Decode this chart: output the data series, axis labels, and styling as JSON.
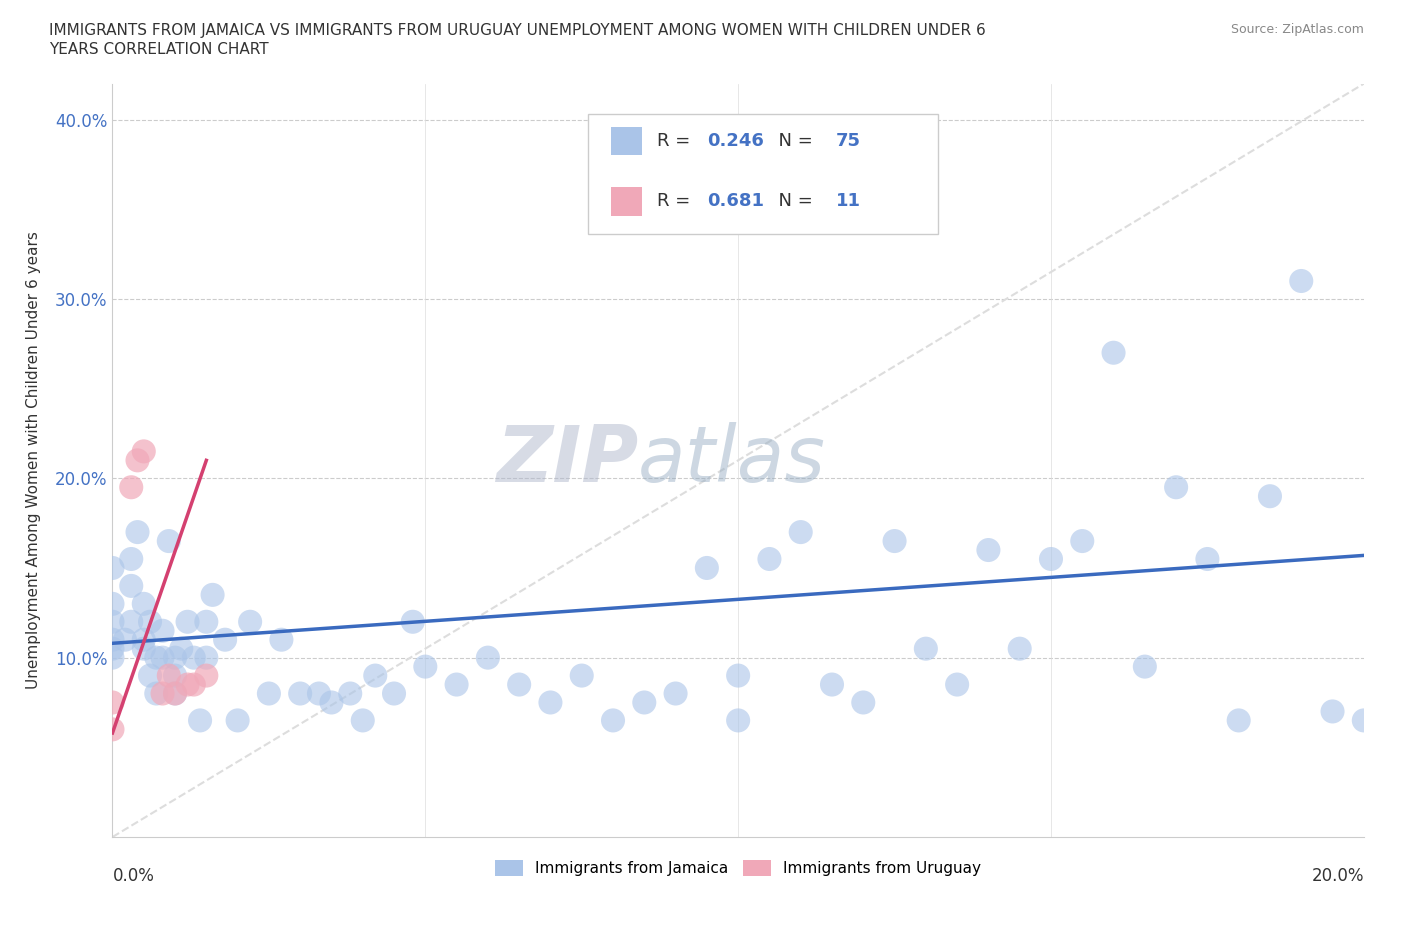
{
  "title_line1": "IMMIGRANTS FROM JAMAICA VS IMMIGRANTS FROM URUGUAY UNEMPLOYMENT AMONG WOMEN WITH CHILDREN UNDER 6",
  "title_line2": "YEARS CORRELATION CHART",
  "source": "Source: ZipAtlas.com",
  "ylabel": "Unemployment Among Women with Children Under 6 years",
  "x_min": 0.0,
  "x_max": 0.2,
  "y_min": 0.0,
  "y_max": 0.42,
  "yticks": [
    0.1,
    0.2,
    0.3,
    0.4
  ],
  "ytick_labels": [
    "10.0%",
    "20.0%",
    "30.0%",
    "40.0%"
  ],
  "jamaica_color": "#aac4e8",
  "uruguay_color": "#f0a8b8",
  "jamaica_line_color": "#3a6abf",
  "uruguay_line_color": "#d44070",
  "legend_jamaica_label": "Immigrants from Jamaica",
  "legend_uruguay_label": "Immigrants from Uruguay",
  "R_jamaica": 0.246,
  "N_jamaica": 75,
  "R_uruguay": 0.681,
  "N_uruguay": 11,
  "watermark_zip": "ZIP",
  "watermark_atlas": "atlas",
  "jamaica_x": [
    0.0,
    0.0,
    0.0,
    0.0,
    0.0,
    0.0,
    0.002,
    0.003,
    0.003,
    0.003,
    0.004,
    0.005,
    0.005,
    0.005,
    0.006,
    0.006,
    0.007,
    0.007,
    0.008,
    0.008,
    0.009,
    0.01,
    0.01,
    0.01,
    0.011,
    0.012,
    0.013,
    0.014,
    0.015,
    0.015,
    0.016,
    0.018,
    0.02,
    0.022,
    0.025,
    0.027,
    0.03,
    0.033,
    0.035,
    0.038,
    0.04,
    0.042,
    0.045,
    0.048,
    0.05,
    0.055,
    0.06,
    0.065,
    0.07,
    0.075,
    0.08,
    0.085,
    0.09,
    0.095,
    0.1,
    0.1,
    0.105,
    0.11,
    0.115,
    0.12,
    0.125,
    0.13,
    0.135,
    0.14,
    0.145,
    0.15,
    0.155,
    0.16,
    0.165,
    0.17,
    0.175,
    0.18,
    0.185,
    0.19,
    0.195
  ],
  "jamaica_y": [
    0.1,
    0.105,
    0.11,
    0.12,
    0.13,
    0.15,
    0.11,
    0.12,
    0.14,
    0.155,
    0.17,
    0.105,
    0.11,
    0.13,
    0.09,
    0.12,
    0.08,
    0.1,
    0.1,
    0.115,
    0.165,
    0.08,
    0.09,
    0.1,
    0.105,
    0.12,
    0.1,
    0.065,
    0.1,
    0.12,
    0.135,
    0.11,
    0.065,
    0.12,
    0.08,
    0.11,
    0.08,
    0.08,
    0.075,
    0.08,
    0.065,
    0.09,
    0.08,
    0.12,
    0.095,
    0.085,
    0.1,
    0.085,
    0.075,
    0.09,
    0.065,
    0.075,
    0.08,
    0.15,
    0.065,
    0.09,
    0.155,
    0.17,
    0.085,
    0.075,
    0.165,
    0.105,
    0.085,
    0.16,
    0.105,
    0.155,
    0.165,
    0.27,
    0.095,
    0.195,
    0.155,
    0.065,
    0.19,
    0.31,
    0.07
  ],
  "jamaica_extra_x": [
    0.2
  ],
  "jamaica_extra_y": [
    0.065
  ],
  "uruguay_x": [
    0.0,
    0.0,
    0.003,
    0.004,
    0.005,
    0.008,
    0.009,
    0.01,
    0.012,
    0.013,
    0.015
  ],
  "uruguay_y": [
    0.06,
    0.075,
    0.195,
    0.21,
    0.215,
    0.08,
    0.09,
    0.08,
    0.085,
    0.085,
    0.09
  ],
  "jamaica_trend_x": [
    0.0,
    0.2
  ],
  "jamaica_trend_y": [
    0.108,
    0.157
  ],
  "uruguay_trend_x": [
    0.0,
    0.015
  ],
  "uruguay_trend_y": [
    0.058,
    0.21
  ]
}
